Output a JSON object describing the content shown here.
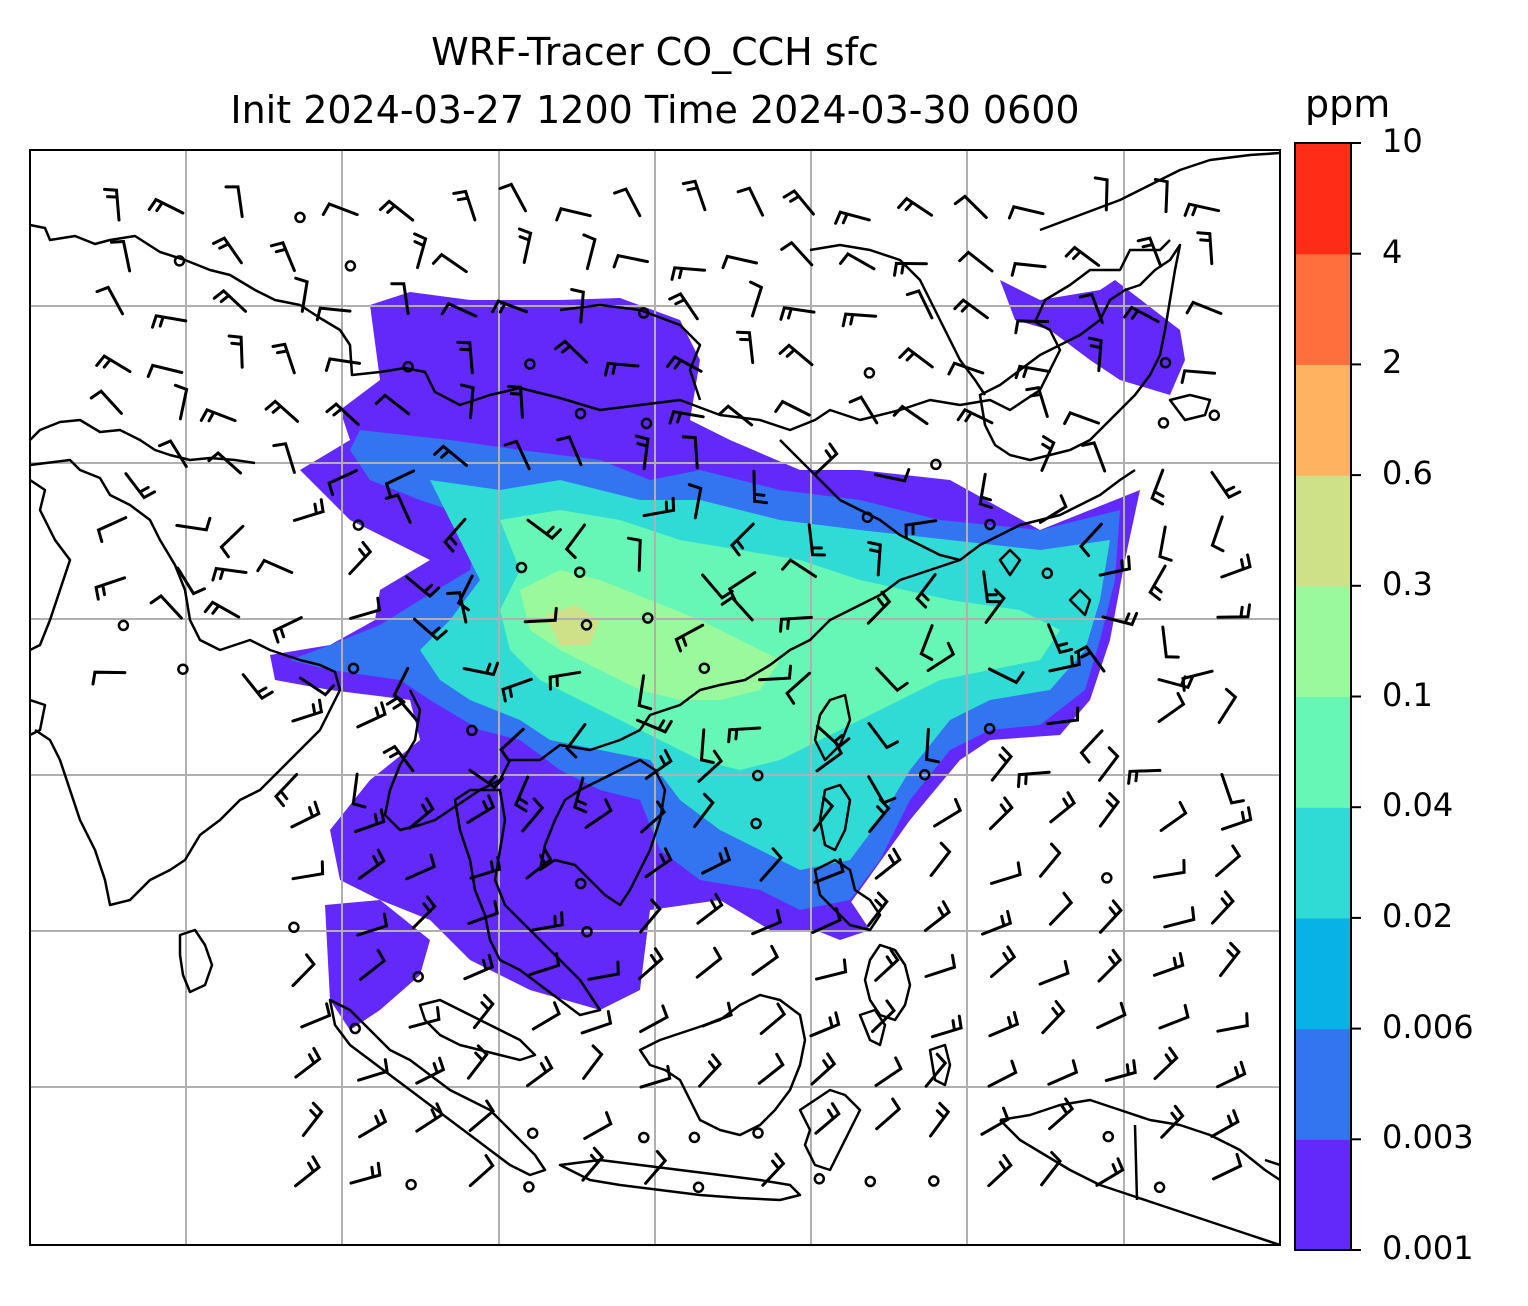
{
  "title": {
    "line1": "WRF-Tracer CO_CCH sfc",
    "line2": "Init 2024-03-27 1200 Time 2024-03-30 0600"
  },
  "colorbar": {
    "unit": "ppm",
    "ticks": [
      "0.001",
      "0.003",
      "0.006",
      "0.02",
      "0.04",
      "0.1",
      "0.3",
      "0.6",
      "2",
      "4",
      "10"
    ],
    "colors": [
      "#6229fa",
      "#3374f0",
      "#08b2e6",
      "#30dbd5",
      "#66f7b6",
      "#9af99d",
      "#cfe188",
      "#ffb25f",
      "#ff6e3c",
      "#ff2c17"
    ]
  },
  "map": {
    "field_colors": {
      "level1": "#6229fa",
      "level2": "#3374f0",
      "level3": "#30dbd5",
      "level4": "#66f7b6",
      "level5": "#9af99d",
      "level6": "#cfe188"
    },
    "coastline_color": "#000000",
    "gridline_color": "#b0b0b0",
    "wind_barb_color": "#000000"
  }
}
